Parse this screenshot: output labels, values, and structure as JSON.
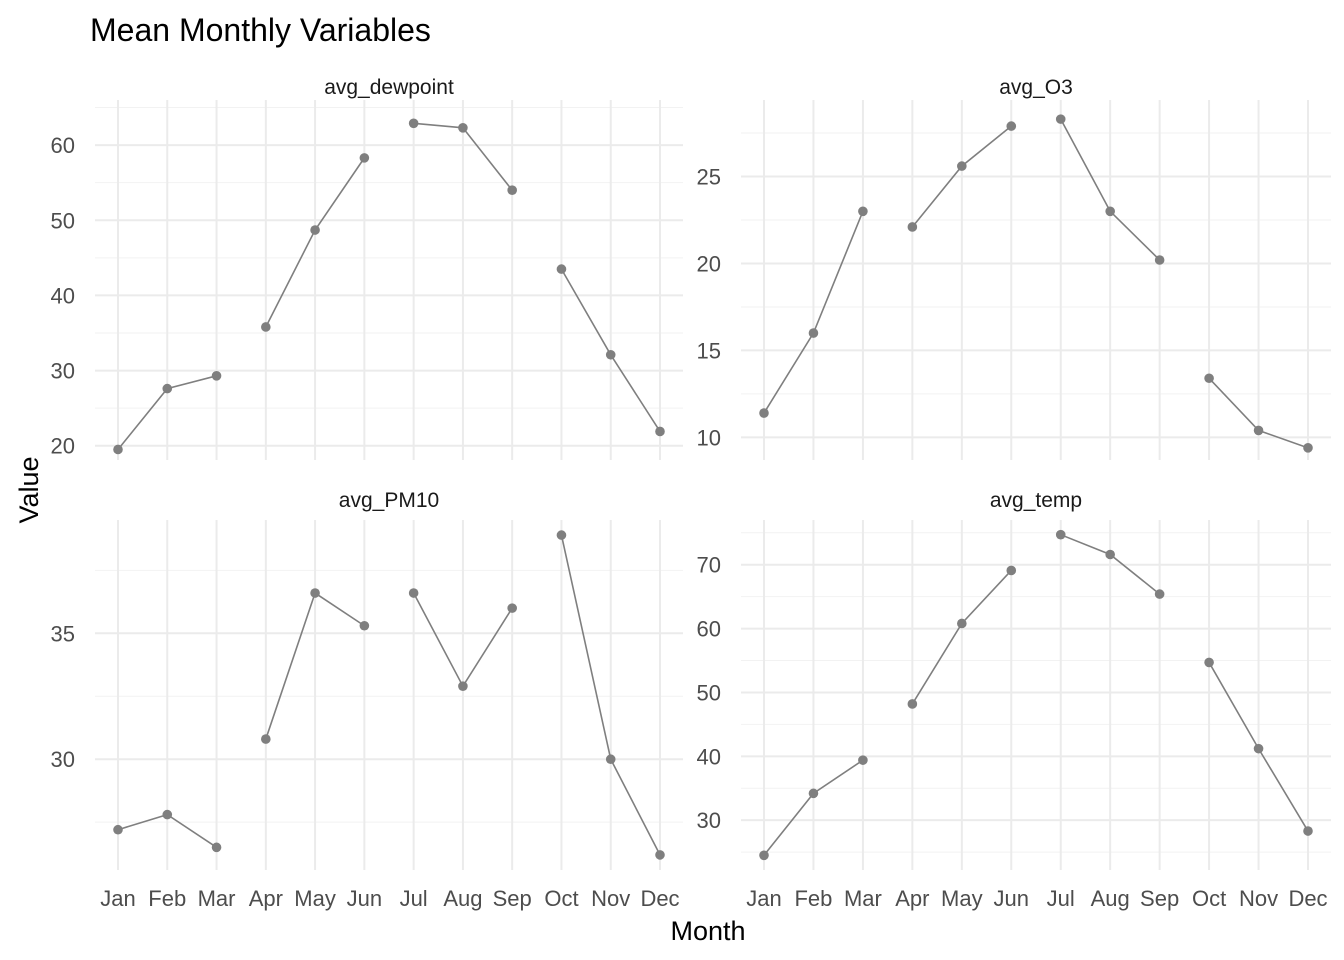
{
  "chart_data": {
    "type": "line",
    "title": "Mean Monthly Variables",
    "xlabel": "Month",
    "ylabel": "Value",
    "categories": [
      "Jan",
      "Feb",
      "Mar",
      "Apr",
      "May",
      "Jun",
      "Jul",
      "Aug",
      "Sep",
      "Oct",
      "Nov",
      "Dec"
    ],
    "line_groups": [
      [
        0,
        1,
        2
      ],
      [
        3,
        4,
        5
      ],
      [
        6,
        7,
        8
      ],
      [
        9,
        10,
        11
      ]
    ],
    "colors": {
      "series": "#7f7f7f",
      "grid_major": "#ebebeb",
      "grid_minor": "#f2f2f2"
    },
    "grid": true,
    "facets": [
      {
        "name": "avg_dewpoint",
        "values": [
          19.5,
          27.6,
          29.3,
          35.8,
          48.7,
          58.3,
          62.9,
          62.3,
          54.0,
          43.5,
          32.1,
          21.9
        ],
        "ylim": [
          18.1,
          66.0
        ],
        "yticks": [
          20,
          30,
          40,
          50,
          60
        ]
      },
      {
        "name": "avg_O3",
        "values": [
          11.4,
          16.0,
          23.0,
          22.1,
          25.6,
          27.9,
          28.3,
          23.0,
          20.2,
          13.4,
          10.4,
          9.4
        ],
        "ylim": [
          8.7,
          29.4
        ],
        "yticks": [
          10,
          15,
          20,
          25
        ]
      },
      {
        "name": "avg_PM10",
        "values": [
          27.2,
          27.8,
          26.5,
          30.8,
          36.6,
          35.3,
          36.6,
          32.9,
          36.0,
          38.9,
          30.0,
          26.2
        ],
        "ylim": [
          25.6,
          39.5
        ],
        "yticks": [
          30,
          35
        ]
      },
      {
        "name": "avg_temp",
        "values": [
          24.5,
          34.2,
          39.4,
          48.2,
          60.8,
          69.1,
          74.7,
          71.6,
          65.4,
          54.7,
          41.2,
          28.3
        ],
        "ylim": [
          22.2,
          77.0
        ],
        "yticks": [
          30,
          40,
          50,
          60,
          70
        ]
      }
    ]
  }
}
